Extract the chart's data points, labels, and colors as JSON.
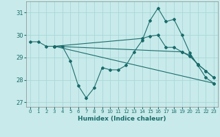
{
  "xlabel": "Humidex (Indice chaleur)",
  "bg_color": "#c8eaea",
  "line_color": "#1a6b6b",
  "grid_color": "#a8d8d8",
  "xlim": [
    -0.5,
    23.5
  ],
  "ylim": [
    26.8,
    31.5
  ],
  "yticks": [
    27,
    28,
    29,
    30,
    31
  ],
  "xticks": [
    0,
    1,
    2,
    3,
    4,
    5,
    6,
    7,
    8,
    9,
    10,
    11,
    12,
    13,
    14,
    15,
    16,
    17,
    18,
    19,
    20,
    21,
    22,
    23
  ],
  "lines": [
    {
      "x": [
        0,
        1,
        2,
        3,
        4,
        5,
        6,
        7,
        8,
        9,
        10,
        11,
        12,
        13,
        14,
        15,
        16,
        17,
        18,
        19,
        20,
        21,
        22,
        23
      ],
      "y": [
        29.7,
        29.7,
        29.5,
        29.5,
        29.5,
        28.85,
        27.75,
        27.2,
        27.65,
        28.55,
        28.45,
        28.45,
        28.65,
        29.25,
        29.75,
        30.65,
        31.2,
        30.6,
        30.7,
        30.0,
        29.2,
        28.65,
        28.1,
        27.85
      ]
    },
    {
      "x": [
        3,
        23
      ],
      "y": [
        29.5,
        27.85
      ]
    },
    {
      "x": [
        3,
        14,
        15,
        16,
        17,
        18,
        19,
        20,
        21,
        22,
        23
      ],
      "y": [
        29.5,
        29.85,
        29.95,
        30.0,
        29.45,
        29.45,
        29.25,
        29.1,
        28.7,
        28.4,
        28.1
      ]
    },
    {
      "x": [
        3,
        19,
        20,
        21,
        22,
        23
      ],
      "y": [
        29.5,
        29.25,
        29.05,
        28.7,
        28.4,
        28.1
      ]
    }
  ]
}
